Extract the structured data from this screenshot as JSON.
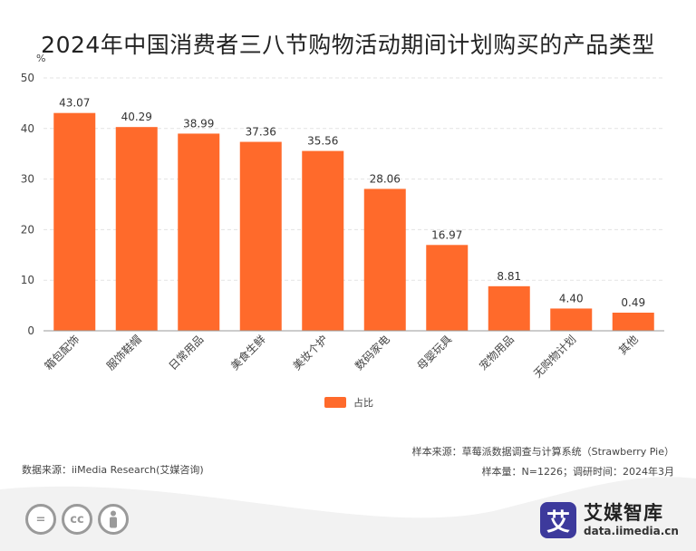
{
  "title": "2024年中国消费者三八节购物活动期间计划购买的产品类型",
  "unit": "%",
  "legend_label": "占比",
  "source_left": "数据来源：iiMedia Research(艾媒咨询)",
  "source_right_1": "样本来源：草莓派数据调查与计算系统（Strawberry Pie）",
  "source_right_2": "样本量：N=1226；调研时间：2024年3月",
  "brand": {
    "logo_char": "艾",
    "name": "艾媒智库",
    "url": "data.iimedia.cn"
  },
  "license_icons": [
    "equals-icon",
    "cc-icon",
    "person-icon"
  ],
  "license_labels": [
    "=",
    "cc",
    ""
  ],
  "colors": {
    "bar": "#ff6a2b",
    "grid": "#e3e3e3",
    "axis": "#999999",
    "brand": "#3d3a9c"
  },
  "chart_data": {
    "type": "bar",
    "categories": [
      "箱包配饰",
      "服饰鞋帽",
      "日常用品",
      "美食生鲜",
      "美妆个护",
      "数码家电",
      "母婴玩具",
      "宠物用品",
      "无购物计划",
      "其他"
    ],
    "values": [
      43.07,
      40.29,
      38.99,
      37.36,
      35.56,
      28.06,
      16.97,
      8.81,
      4.4,
      0.49
    ],
    "value_labels": [
      "43.07",
      "40.29",
      "38.99",
      "37.36",
      "35.56",
      "28.06",
      "16.97",
      "8.81",
      "4.40",
      "0.49"
    ],
    "series": [
      {
        "name": "占比"
      }
    ],
    "ylabel": "%",
    "ylim": [
      0,
      50
    ],
    "yticks": [
      0,
      10,
      20,
      30,
      40,
      50
    ],
    "grid": true,
    "legend_position": "bottom-center"
  }
}
